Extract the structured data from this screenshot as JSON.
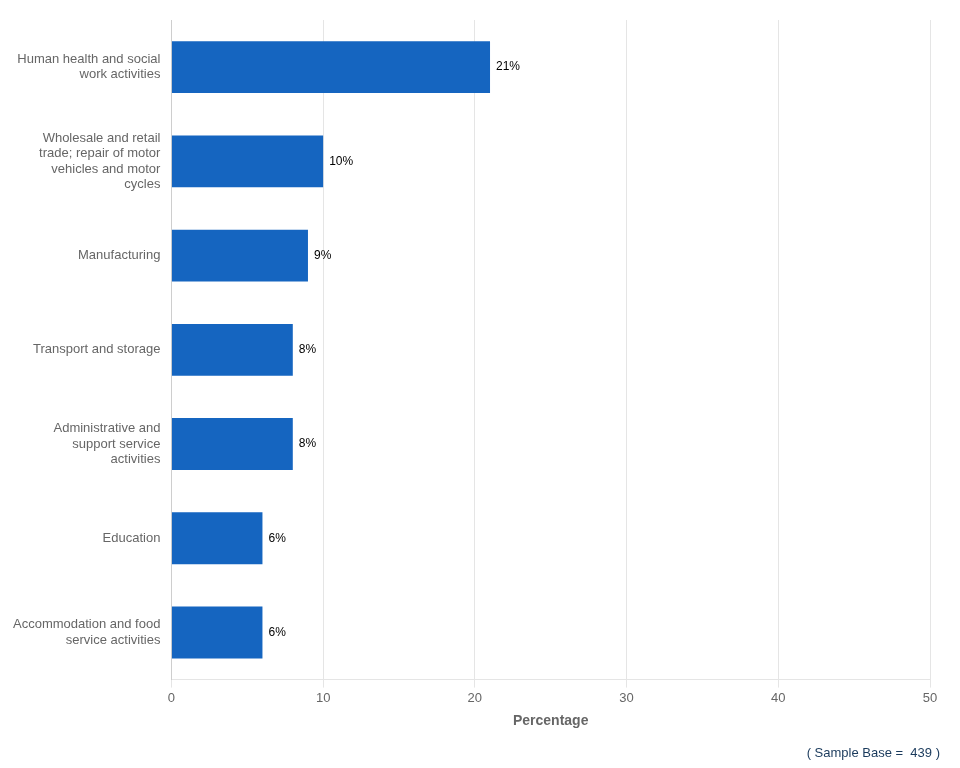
{
  "chart_data": {
    "type": "bar",
    "orientation": "horizontal",
    "categories": [
      "Accommodation and food\nservice activities",
      "Education",
      "Administrative and\nsupport service\nactivities",
      "Transport and storage",
      "Manufacturing",
      "Wholesale and retail\ntrade; repair of motor\nvehicles and motor\ncycles",
      "Human health and social\nwork activities"
    ],
    "values": [
      6,
      6,
      8,
      8,
      9,
      10,
      21
    ],
    "value_labels": [
      "6%",
      "6%",
      "8%",
      "8%",
      "9%",
      "10%",
      "21%"
    ],
    "data_labels": true,
    "color": "#1565C0",
    "xlabel": "Percentage",
    "xlim": [
      0,
      50
    ],
    "xticks": [
      0,
      10,
      20,
      30,
      40,
      50
    ],
    "grid": true,
    "annotation": "( Sample Base =  439 )"
  }
}
